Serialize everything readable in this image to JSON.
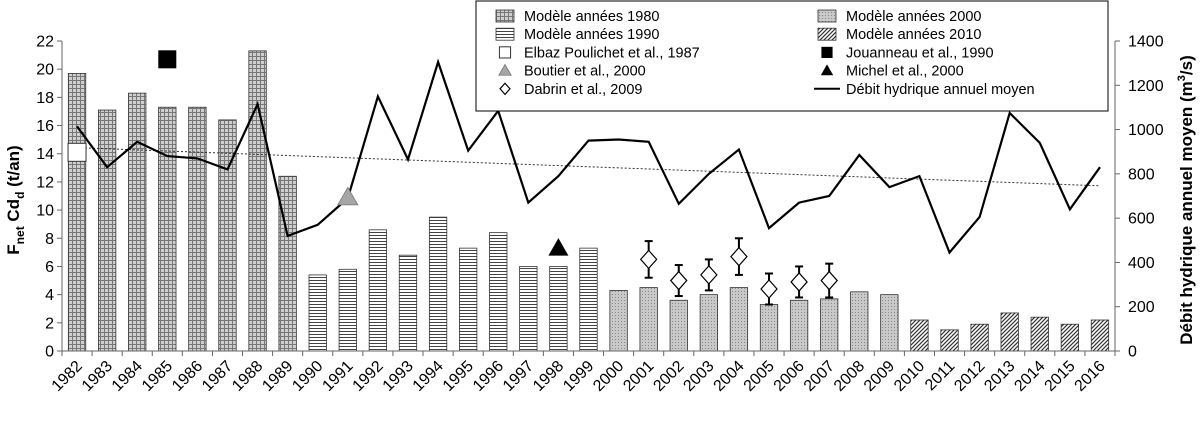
{
  "chart_data": {
    "type": "bar",
    "categories": [
      "1982",
      "1983",
      "1984",
      "1985",
      "1986",
      "1987",
      "1988",
      "1989",
      "1990",
      "1991",
      "1992",
      "1993",
      "1994",
      "1995",
      "1996",
      "1997",
      "1998",
      "1999",
      "2000",
      "2001",
      "2002",
      "2003",
      "2004",
      "2005",
      "2006",
      "2007",
      "2008",
      "2009",
      "2010",
      "2011",
      "2012",
      "2013",
      "2014",
      "2015",
      "2016"
    ],
    "y_left": {
      "label_main": "F",
      "label_sub1": "net",
      "label_mid": " Cd",
      "label_sub2": "d",
      "label_end": " (t/an)",
      "range": [
        0,
        22
      ],
      "ticks": [
        "0",
        "2",
        "4",
        "6",
        "8",
        "10",
        "12",
        "14",
        "16",
        "18",
        "20",
        "22"
      ]
    },
    "y_right": {
      "label_main": "Débit hydrique annuel moyen (m",
      "label_sup": "3",
      "label_end": "/s)",
      "range": [
        0,
        1400
      ],
      "ticks": [
        "0",
        "200",
        "400",
        "600",
        "800",
        "1000",
        "1200",
        "1400"
      ]
    },
    "model_series": [
      {
        "name": "Modèle années 1980",
        "pattern": "grid",
        "values": [
          19.7,
          17.1,
          18.3,
          17.3,
          17.3,
          16.4,
          21.3,
          12.4
        ]
      },
      {
        "name": "Modèle années 1990",
        "pattern": "hlines",
        "values": [
          5.4,
          5.8,
          8.6,
          6.8,
          9.5,
          7.3,
          8.4,
          6.0,
          6.0,
          7.3
        ]
      },
      {
        "name": "Modèle années 2000",
        "pattern": "dots",
        "values": [
          4.3,
          4.5,
          3.6,
          4.0,
          4.5,
          3.3,
          3.6,
          3.7,
          4.2,
          4.0
        ]
      },
      {
        "name": "Modèle années 2010",
        "pattern": "diag",
        "values": [
          2.2,
          1.5,
          1.9,
          2.7,
          2.4,
          1.9,
          2.2
        ]
      }
    ],
    "observations": [
      {
        "name": "Elbaz Poulichet et al., 1987",
        "marker": "open-square",
        "points": [
          {
            "x": "1982",
            "y": 14.1
          }
        ]
      },
      {
        "name": "Jouanneau et al., 1990",
        "marker": "filled-square",
        "points": [
          {
            "x": "1985",
            "y": 20.7
          }
        ]
      },
      {
        "name": "Boutier et al., 2000",
        "marker": "grey-triangle",
        "points": [
          {
            "x": "1991",
            "y": 10.9
          }
        ]
      },
      {
        "name": "Michel et al., 2000",
        "marker": "filled-triangle",
        "points": [
          {
            "x": "1998",
            "y": 7.3
          }
        ]
      },
      {
        "name": "Dabrin et al., 2009",
        "marker": "open-diamond",
        "points": [
          {
            "x": "2001",
            "y": 6.5,
            "err": 1.3
          },
          {
            "x": "2002",
            "y": 5.0,
            "err": 1.1
          },
          {
            "x": "2003",
            "y": 5.4,
            "err": 1.1
          },
          {
            "x": "2004",
            "y": 6.7,
            "err": 1.3
          },
          {
            "x": "2005",
            "y": 4.4,
            "err": 1.1
          },
          {
            "x": "2006",
            "y": 4.9,
            "err": 1.1
          },
          {
            "x": "2007",
            "y": 5.0,
            "err": 1.2
          }
        ]
      }
    ],
    "discharge": {
      "name": "Débit hydrique annuel moyen",
      "values": [
        1015,
        830,
        945,
        880,
        870,
        820,
        1115,
        520,
        570,
        690,
        1150,
        865,
        1305,
        905,
        1085,
        670,
        790,
        950,
        955,
        945,
        665,
        800,
        910,
        555,
        670,
        700,
        885,
        740,
        790,
        445,
        605,
        1075,
        940,
        640,
        830
      ]
    },
    "legend_position": "top-center",
    "grid": false
  }
}
